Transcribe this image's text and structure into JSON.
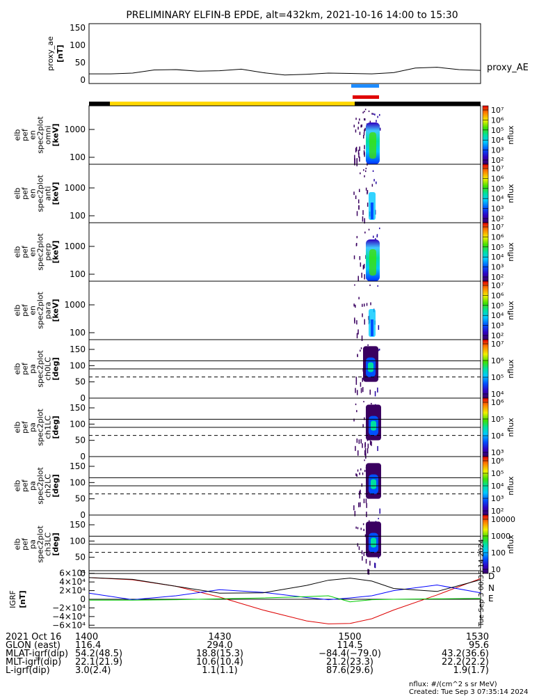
{
  "title": "PRELIMINARY ELFIN-B EPDE, alt=432km, 2021-10-16 14:00 to 15:30",
  "colors": {
    "bar_yellow": "#ffd800",
    "bar_black": "#000000",
    "bar_blue": "#1e8cff",
    "bar_red": "#e00000",
    "bfield_black": "#000000",
    "bfield_blue": "#0000ff",
    "bfield_red": "#dd0000",
    "bfield_green": "#00cc00"
  },
  "proxy_panel": {
    "ylabel_lines": [
      "proxy_ae",
      "[nT]"
    ],
    "series_label": "proxy_AE",
    "yticks": [
      "150",
      "100",
      "50",
      "0"
    ]
  },
  "spectrum_panels": [
    {
      "ylabel_lines": [
        "elb",
        "pef",
        "en",
        "spec2plot",
        "omni",
        "[keV]"
      ],
      "yticks": [
        "1000",
        "100"
      ]
    },
    {
      "ylabel_lines": [
        "elb",
        "pef",
        "en",
        "spec2plot",
        "anti",
        "[keV]"
      ],
      "yticks": [
        "1000",
        "100"
      ]
    },
    {
      "ylabel_lines": [
        "elb",
        "pef",
        "en",
        "spec2plot",
        "perp",
        "[keV]"
      ],
      "yticks": [
        "1000",
        "100"
      ]
    },
    {
      "ylabel_lines": [
        "elb",
        "pef",
        "en",
        "spec2plot",
        "para",
        "[keV]"
      ],
      "yticks": [
        "1000",
        "100"
      ]
    }
  ],
  "pitch_panels": [
    {
      "ylabel_lines": [
        "elb",
        "pef",
        "pa",
        "spec2plot",
        "ch0LC",
        "[deg]"
      ],
      "yticks": [
        "150",
        "100",
        "50",
        "0"
      ]
    },
    {
      "ylabel_lines": [
        "elb",
        "pef",
        "pa",
        "spec2plot",
        "ch1LC",
        "[deg]"
      ],
      "yticks": [
        "150",
        "100",
        "50",
        "0"
      ]
    },
    {
      "ylabel_lines": [
        "elb",
        "pef",
        "pa",
        "spec2plot",
        "ch2LC",
        "[deg]"
      ],
      "yticks": [
        "150",
        "100",
        "50",
        "0"
      ]
    },
    {
      "ylabel_lines": [
        "elb",
        "pef",
        "pa",
        "spec2plot",
        "ch3LC",
        "[deg]"
      ],
      "yticks": [
        "150",
        "100",
        "50",
        "0"
      ]
    }
  ],
  "colorbars": [
    {
      "label": "nflux",
      "ticks": [
        "10⁷",
        "10⁶",
        "10⁵",
        "10⁴",
        "10³",
        "10²"
      ]
    },
    {
      "label": "nflux",
      "ticks": [
        "10⁷",
        "10⁶",
        "10⁵",
        "10⁴",
        "10³",
        "10²"
      ]
    },
    {
      "label": "nflux",
      "ticks": [
        "10⁷",
        "10⁶",
        "10⁵",
        "10⁴",
        "10³",
        "10²"
      ]
    },
    {
      "label": "nflux",
      "ticks": [
        "10⁷",
        "10⁶",
        "10⁵",
        "10⁴",
        "10³",
        "10²"
      ]
    },
    {
      "label": "nflux",
      "ticks": [
        "10⁷",
        "10⁶",
        "10⁵",
        "10⁴"
      ]
    },
    {
      "label": "nflux",
      "ticks": [
        "10⁶",
        "10⁵",
        "10⁴",
        "10³"
      ]
    },
    {
      "label": "nflux",
      "ticks": [
        "10⁶",
        "10⁵",
        "10⁴",
        "10³",
        "10²"
      ]
    },
    {
      "label": "nflux",
      "ticks": [
        "10000",
        "1000",
        "100",
        "10"
      ]
    }
  ],
  "bfield_panel": {
    "ylabel_lines": [
      "IGRF",
      "[nT]"
    ],
    "yticks": [
      "6×10⁴",
      "4×10⁴",
      "2×10⁴",
      "0",
      "−2×10⁴",
      "−4×10⁴",
      "−6×10⁴"
    ],
    "legend": [
      "D",
      "N",
      "E"
    ]
  },
  "side_stamp": "Tue Sep  3 00:35:14 2024",
  "footer": {
    "rows": [
      {
        "label": "2021 Oct 16",
        "values": [
          "1400",
          "1430",
          "1500",
          "1530"
        ]
      },
      {
        "label": "GLON (east)",
        "values": [
          "116.4",
          "294.0",
          "114.5",
          "95.6"
        ]
      },
      {
        "label": "MLAT-igrf(dip)",
        "values": [
          "54.2(48.5)",
          "18.8(15.3)",
          "−84.4(−79.0)",
          "43.2(36.6)"
        ]
      },
      {
        "label": "MLT-igrf(dip)",
        "values": [
          "22.1(21.9)",
          "10.6(10.4)",
          "21.2(23.3)",
          "22.2(22.2)"
        ]
      },
      {
        "label": "L-igrf(dip)",
        "values": [
          "3.0(2.4)",
          "1.1(1.1)",
          "87.6(29.6)",
          "1.9(1.7)"
        ]
      }
    ],
    "units_note": "nflux: #/(cm^2 s sr MeV)",
    "created": "Created: Tue Sep  3 07:35:14 2024"
  },
  "chart_data": [
    {
      "type": "line",
      "name": "proxy_AE",
      "x_range": [
        "14:00",
        "15:30"
      ],
      "ylim": [
        0,
        150
      ],
      "x_minutes": [
        0,
        5,
        10,
        15,
        20,
        25,
        30,
        35,
        40,
        45,
        50,
        55,
        60,
        65,
        70,
        75,
        80,
        85,
        90
      ],
      "values": [
        25,
        25,
        27,
        35,
        36,
        32,
        33,
        37,
        28,
        22,
        24,
        27,
        26,
        25,
        28,
        40,
        42,
        36,
        34
      ]
    },
    {
      "type": "heatmap",
      "panels": [
        "omni",
        "anti",
        "perp",
        "para"
      ],
      "yscale": "log",
      "y_unit": "keV",
      "color_scale": "log nflux",
      "activity_window": [
        "15:02",
        "15:06"
      ]
    },
    {
      "type": "heatmap",
      "panels": [
        "ch0LC",
        "ch1LC",
        "ch2LC",
        "ch3LC"
      ],
      "ylim": [
        0,
        180
      ],
      "y_unit": "deg",
      "color_scale": "log nflux",
      "activity_window": [
        "15:02",
        "15:06"
      ]
    },
    {
      "type": "line",
      "x_range": [
        "14:00",
        "15:30"
      ],
      "ylim": [
        -60000,
        60000
      ],
      "x_minutes": [
        0,
        10,
        20,
        30,
        40,
        50,
        55,
        60,
        65,
        70,
        80,
        90
      ],
      "series": [
        {
          "name": "D",
          "values": [
            50000,
            45000,
            30000,
            5000,
            -25000,
            -50000,
            -57000,
            -56000,
            -45000,
            -25000,
            10000,
            48000
          ]
        },
        {
          "name": "N",
          "values": [
            14000,
            -1000,
            8000,
            22000,
            16000,
            4000,
            -1000,
            3000,
            8000,
            20000,
            33000,
            15000
          ]
        },
        {
          "name": "E",
          "values": [
            -2000,
            -2000,
            -1000,
            1000,
            3000,
            6000,
            8000,
            -6000,
            -1000,
            0,
            1000,
            2000
          ]
        },
        {
          "values": [
            50000,
            46000,
            30000,
            14000,
            15000,
            32000,
            44000,
            49000,
            42000,
            25000,
            18000,
            45000
          ]
        }
      ]
    }
  ]
}
